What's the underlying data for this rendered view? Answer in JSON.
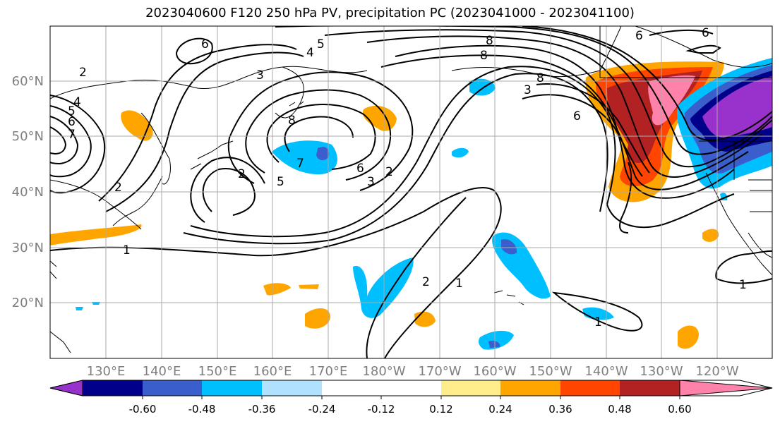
{
  "title": "2023040600 F120 250 hPa PV, precipitation PC (2023041000 - 2023041100)",
  "lon_labels": [
    "130°E",
    "140°E",
    "150°E",
    "160°E",
    "170°E",
    "180°W",
    "170°W",
    "160°W",
    "150°W",
    "140°W",
    "130°W",
    "120°W"
  ],
  "lat_labels": [
    "60°N",
    "50°N",
    "40°N",
    "30°N",
    "20°N"
  ],
  "colorbar": {
    "colors": [
      "#9932cc",
      "#00008b",
      "#3a5fcd",
      "#00bfff",
      "#b0e2ff",
      "#ffffff",
      "#ffffff",
      "#ffec8b",
      "#ffa500",
      "#ff4500",
      "#b22222",
      "#ff82ab"
    ],
    "tick_labels": [
      "-0.60",
      "-0.48",
      "-0.36",
      "-0.24",
      "-0.12",
      "0.12",
      "0.24",
      "0.36",
      "0.48",
      "0.60"
    ]
  },
  "contour_labels": [
    "6",
    "4",
    "5",
    "3",
    "2",
    "8",
    "7",
    "6",
    "3",
    "5",
    "4",
    "5",
    "6",
    "7",
    "2",
    "2",
    "2",
    "1",
    "2",
    "1",
    "8",
    "8",
    "3",
    "6",
    "6",
    "8",
    "6",
    "1",
    "1"
  ],
  "colors": {
    "contour": "#000000",
    "grid": "#aaaaaa",
    "axis_text": "#7f7f7f"
  }
}
